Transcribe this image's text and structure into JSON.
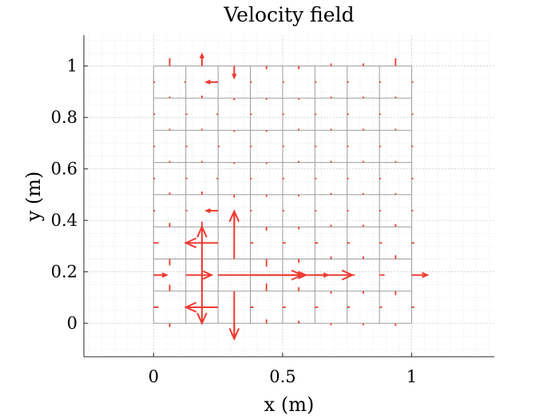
{
  "chart_data": {
    "type": "quiver",
    "title": "Velocity field",
    "xlabel": "x (m)",
    "ylabel": "y (m)",
    "xlim": [
      -0.27,
      1.32
    ],
    "ylim": [
      -0.13,
      1.12
    ],
    "xticks": [
      0,
      0.5,
      1
    ],
    "xtick_labels": [
      "0",
      "0.5",
      "1"
    ],
    "yticks": [
      0,
      0.2,
      0.4,
      0.6,
      0.8,
      1
    ],
    "ytick_labels": [
      "0",
      "0.2",
      "0.4",
      "0.6",
      "0.8",
      "1"
    ],
    "grid": true,
    "minor_grid": true,
    "arrow_color": "#ee3b31",
    "mesh_color": "#9b9b9b",
    "mesh": {
      "x_edges": 9,
      "y_edges": 9,
      "xmin": 0,
      "xmax": 1,
      "ymin": 0,
      "ymax": 1
    },
    "arrows": [
      {
        "x": 0.0625,
        "y": 1.0,
        "u": 0,
        "v": 0.03
      },
      {
        "x": 0.1875,
        "y": 1.0,
        "u": 0,
        "v": 0.045
      },
      {
        "x": 0.3125,
        "y": 1.0,
        "u": 0,
        "v": -0.045
      },
      {
        "x": 0.4375,
        "y": 1.0,
        "u": 0,
        "v": -0.012
      },
      {
        "x": 0.5625,
        "y": 1.0,
        "u": 0,
        "v": -0.012
      },
      {
        "x": 0.6875,
        "y": 1.0,
        "u": 0,
        "v": 0.01
      },
      {
        "x": 0.8125,
        "y": 1.0,
        "u": 0,
        "v": 0.01
      },
      {
        "x": 0.9375,
        "y": 1.0,
        "u": 0,
        "v": 0.03
      },
      {
        "x": 0.0,
        "y": 0.9375,
        "u": 0.006,
        "v": 0
      },
      {
        "x": 0.125,
        "y": 0.9375,
        "u": -0.006,
        "v": 0
      },
      {
        "x": 0.25,
        "y": 0.9375,
        "u": -0.045,
        "v": 0
      },
      {
        "x": 0.375,
        "y": 0.9375,
        "u": 0.006,
        "v": 0
      },
      {
        "x": 0.5,
        "y": 0.9375,
        "u": 0.006,
        "v": 0
      },
      {
        "x": 0.625,
        "y": 0.9375,
        "u": 0.006,
        "v": 0
      },
      {
        "x": 0.75,
        "y": 0.9375,
        "u": 0.006,
        "v": 0
      },
      {
        "x": 0.875,
        "y": 0.9375,
        "u": 0.006,
        "v": 0
      },
      {
        "x": 1.0,
        "y": 0.9375,
        "u": 0.006,
        "v": 0
      },
      {
        "x": 0.0625,
        "y": 0.875,
        "u": 0,
        "v": 0.006
      },
      {
        "x": 0.1875,
        "y": 0.875,
        "u": 0,
        "v": 0.01
      },
      {
        "x": 0.3125,
        "y": 0.875,
        "u": 0,
        "v": -0.008
      },
      {
        "x": 0.4375,
        "y": 0.875,
        "u": 0,
        "v": -0.006
      },
      {
        "x": 0.5625,
        "y": 0.875,
        "u": 0,
        "v": -0.006
      },
      {
        "x": 0.6875,
        "y": 0.875,
        "u": 0,
        "v": 0.006
      },
      {
        "x": 0.8125,
        "y": 0.875,
        "u": 0,
        "v": 0.006
      },
      {
        "x": 0.9375,
        "y": 0.875,
        "u": 0,
        "v": 0.006
      },
      {
        "x": 0.0,
        "y": 0.8125,
        "u": 0.006,
        "v": 0
      },
      {
        "x": 0.125,
        "y": 0.8125,
        "u": 0.006,
        "v": 0
      },
      {
        "x": 0.25,
        "y": 0.8125,
        "u": -0.006,
        "v": 0
      },
      {
        "x": 0.375,
        "y": 0.8125,
        "u": 0.006,
        "v": 0
      },
      {
        "x": 0.5,
        "y": 0.8125,
        "u": 0.006,
        "v": 0
      },
      {
        "x": 0.625,
        "y": 0.8125,
        "u": 0.006,
        "v": 0
      },
      {
        "x": 0.75,
        "y": 0.8125,
        "u": 0.006,
        "v": 0
      },
      {
        "x": 0.875,
        "y": 0.8125,
        "u": 0.006,
        "v": 0
      },
      {
        "x": 1.0,
        "y": 0.8125,
        "u": 0.006,
        "v": 0
      },
      {
        "x": 0.0625,
        "y": 0.75,
        "u": 0,
        "v": 0.006
      },
      {
        "x": 0.1875,
        "y": 0.75,
        "u": 0,
        "v": 0.006
      },
      {
        "x": 0.3125,
        "y": 0.75,
        "u": 0,
        "v": -0.006
      },
      {
        "x": 0.4375,
        "y": 0.75,
        "u": 0,
        "v": -0.006
      },
      {
        "x": 0.5625,
        "y": 0.75,
        "u": 0,
        "v": 0.006
      },
      {
        "x": 0.6875,
        "y": 0.75,
        "u": 0,
        "v": 0.006
      },
      {
        "x": 0.8125,
        "y": 0.75,
        "u": 0,
        "v": 0.006
      },
      {
        "x": 0.9375,
        "y": 0.75,
        "u": 0,
        "v": 0.006
      },
      {
        "x": 0.0,
        "y": 0.6875,
        "u": 0.006,
        "v": 0
      },
      {
        "x": 0.125,
        "y": 0.6875,
        "u": 0.006,
        "v": 0
      },
      {
        "x": 0.25,
        "y": 0.6875,
        "u": 0.006,
        "v": 0
      },
      {
        "x": 0.375,
        "y": 0.6875,
        "u": 0.006,
        "v": 0
      },
      {
        "x": 0.5,
        "y": 0.6875,
        "u": 0.006,
        "v": 0
      },
      {
        "x": 0.625,
        "y": 0.6875,
        "u": 0.006,
        "v": 0
      },
      {
        "x": 0.75,
        "y": 0.6875,
        "u": 0.006,
        "v": 0
      },
      {
        "x": 0.875,
        "y": 0.6875,
        "u": 0.006,
        "v": 0
      },
      {
        "x": 1.0,
        "y": 0.6875,
        "u": 0.006,
        "v": 0
      },
      {
        "x": 0.0625,
        "y": 0.625,
        "u": 0,
        "v": 0.006
      },
      {
        "x": 0.1875,
        "y": 0.625,
        "u": 0,
        "v": 0.006
      },
      {
        "x": 0.3125,
        "y": 0.625,
        "u": 0,
        "v": -0.006
      },
      {
        "x": 0.4375,
        "y": 0.625,
        "u": 0,
        "v": -0.006
      },
      {
        "x": 0.5625,
        "y": 0.625,
        "u": 0,
        "v": 0.006
      },
      {
        "x": 0.6875,
        "y": 0.625,
        "u": 0,
        "v": 0.006
      },
      {
        "x": 0.8125,
        "y": 0.625,
        "u": 0,
        "v": 0.006
      },
      {
        "x": 0.9375,
        "y": 0.625,
        "u": 0,
        "v": 0.006
      },
      {
        "x": 0.0,
        "y": 0.5625,
        "u": 0.006,
        "v": 0
      },
      {
        "x": 0.125,
        "y": 0.5625,
        "u": 0.006,
        "v": 0
      },
      {
        "x": 0.25,
        "y": 0.5625,
        "u": -0.006,
        "v": 0
      },
      {
        "x": 0.375,
        "y": 0.5625,
        "u": 0.006,
        "v": 0
      },
      {
        "x": 0.5,
        "y": 0.5625,
        "u": 0.006,
        "v": 0
      },
      {
        "x": 0.625,
        "y": 0.5625,
        "u": 0.006,
        "v": 0
      },
      {
        "x": 0.75,
        "y": 0.5625,
        "u": 0.006,
        "v": 0
      },
      {
        "x": 0.875,
        "y": 0.5625,
        "u": 0.006,
        "v": 0
      },
      {
        "x": 1.0,
        "y": 0.5625,
        "u": 0.006,
        "v": 0
      },
      {
        "x": 0.0625,
        "y": 0.5,
        "u": 0,
        "v": 0.008
      },
      {
        "x": 0.1875,
        "y": 0.5,
        "u": 0,
        "v": 0.012
      },
      {
        "x": 0.3125,
        "y": 0.5,
        "u": 0,
        "v": -0.012
      },
      {
        "x": 0.4375,
        "y": 0.5,
        "u": 0,
        "v": -0.008
      },
      {
        "x": 0.5625,
        "y": 0.5,
        "u": 0,
        "v": -0.006
      },
      {
        "x": 0.6875,
        "y": 0.5,
        "u": 0,
        "v": 0.006
      },
      {
        "x": 0.8125,
        "y": 0.5,
        "u": 0,
        "v": 0.006
      },
      {
        "x": 0.9375,
        "y": 0.5,
        "u": 0,
        "v": 0.006
      },
      {
        "x": 0.0,
        "y": 0.4375,
        "u": 0.006,
        "v": 0
      },
      {
        "x": 0.125,
        "y": 0.4375,
        "u": 0.006,
        "v": 0
      },
      {
        "x": 0.25,
        "y": 0.4375,
        "u": -0.045,
        "v": 0
      },
      {
        "x": 0.375,
        "y": 0.4375,
        "u": 0.006,
        "v": 0
      },
      {
        "x": 0.5,
        "y": 0.4375,
        "u": 0.006,
        "v": 0
      },
      {
        "x": 0.625,
        "y": 0.4375,
        "u": 0.006,
        "v": 0
      },
      {
        "x": 0.75,
        "y": 0.4375,
        "u": 0.006,
        "v": 0
      },
      {
        "x": 0.875,
        "y": 0.4375,
        "u": 0.006,
        "v": 0
      },
      {
        "x": 1.0,
        "y": 0.4375,
        "u": 0.006,
        "v": 0
      },
      {
        "x": 0.0625,
        "y": 0.375,
        "u": 0,
        "v": 0.015
      },
      {
        "x": 0.1875,
        "y": 0.375,
        "u": 0,
        "v": 0.02
      },
      {
        "x": 0.3125,
        "y": 0.375,
        "u": 0,
        "v": 0.06
      },
      {
        "x": 0.4375,
        "y": 0.375,
        "u": 0,
        "v": -0.015
      },
      {
        "x": 0.5625,
        "y": 0.375,
        "u": 0,
        "v": -0.01
      },
      {
        "x": 0.6875,
        "y": 0.375,
        "u": 0,
        "v": 0.008
      },
      {
        "x": 0.8125,
        "y": 0.375,
        "u": 0,
        "v": 0.008
      },
      {
        "x": 0.9375,
        "y": 0.375,
        "u": 0,
        "v": 0.01
      },
      {
        "x": 0.0,
        "y": 0.3125,
        "u": 0.02,
        "v": 0
      },
      {
        "x": 0.125,
        "y": 0.3125,
        "u": 0.012,
        "v": 0
      },
      {
        "x": 0.25,
        "y": 0.3125,
        "u": -0.125,
        "v": 0
      },
      {
        "x": 0.375,
        "y": 0.3125,
        "u": 0.012,
        "v": 0
      },
      {
        "x": 0.5,
        "y": 0.3125,
        "u": 0.012,
        "v": 0
      },
      {
        "x": 0.625,
        "y": 0.3125,
        "u": 0.012,
        "v": 0
      },
      {
        "x": 0.75,
        "y": 0.3125,
        "u": 0.01,
        "v": 0
      },
      {
        "x": 0.875,
        "y": 0.3125,
        "u": 0.01,
        "v": 0
      },
      {
        "x": 1.0,
        "y": 0.3125,
        "u": 0.01,
        "v": 0
      },
      {
        "x": 0.0625,
        "y": 0.25,
        "u": 0,
        "v": -0.025
      },
      {
        "x": 0.1875,
        "y": 0.25,
        "u": 0,
        "v": -0.25
      },
      {
        "x": 0.3125,
        "y": 0.25,
        "u": 0,
        "v": 0.185
      },
      {
        "x": 0.4375,
        "y": 0.25,
        "u": 0,
        "v": -0.03
      },
      {
        "x": 0.5625,
        "y": 0.25,
        "u": 0,
        "v": -0.015
      },
      {
        "x": 0.6875,
        "y": 0.25,
        "u": 0,
        "v": 0.01
      },
      {
        "x": 0.8125,
        "y": 0.25,
        "u": 0,
        "v": 0.01
      },
      {
        "x": 0.9375,
        "y": 0.25,
        "u": 0,
        "v": 0.015
      },
      {
        "x": 0.0,
        "y": 0.1875,
        "u": 0.05,
        "v": 0
      },
      {
        "x": 0.125,
        "y": 0.1875,
        "u": 0.1,
        "v": 0
      },
      {
        "x": 0.25,
        "y": 0.1875,
        "u": 0.52,
        "v": 0
      },
      {
        "x": 0.375,
        "y": 0.1875,
        "u": 0.2,
        "v": 0
      },
      {
        "x": 0.5,
        "y": 0.1875,
        "u": 0.09,
        "v": 0
      },
      {
        "x": 0.625,
        "y": 0.1875,
        "u": 0.05,
        "v": 0
      },
      {
        "x": 0.75,
        "y": 0.1875,
        "u": 0.03,
        "v": 0
      },
      {
        "x": 0.875,
        "y": 0.1875,
        "u": 0.02,
        "v": 0
      },
      {
        "x": 1.0,
        "y": 0.1875,
        "u": 0.06,
        "v": 0
      },
      {
        "x": 0.0625,
        "y": 0.125,
        "u": 0,
        "v": 0.025
      },
      {
        "x": 0.1875,
        "y": 0.125,
        "u": 0,
        "v": 0.25
      },
      {
        "x": 0.3125,
        "y": 0.125,
        "u": 0,
        "v": -0.185
      },
      {
        "x": 0.4375,
        "y": 0.125,
        "u": 0,
        "v": 0.03
      },
      {
        "x": 0.5625,
        "y": 0.125,
        "u": 0,
        "v": 0.015
      },
      {
        "x": 0.6875,
        "y": 0.125,
        "u": 0,
        "v": -0.01
      },
      {
        "x": 0.8125,
        "y": 0.125,
        "u": 0,
        "v": -0.01
      },
      {
        "x": 0.9375,
        "y": 0.125,
        "u": 0,
        "v": -0.015
      },
      {
        "x": 0.0,
        "y": 0.0625,
        "u": 0.02,
        "v": 0
      },
      {
        "x": 0.125,
        "y": 0.0625,
        "u": 0.012,
        "v": 0
      },
      {
        "x": 0.25,
        "y": 0.0625,
        "u": -0.125,
        "v": 0
      },
      {
        "x": 0.375,
        "y": 0.0625,
        "u": 0.012,
        "v": 0
      },
      {
        "x": 0.5,
        "y": 0.0625,
        "u": 0.012,
        "v": 0
      },
      {
        "x": 0.625,
        "y": 0.0625,
        "u": 0.012,
        "v": 0
      },
      {
        "x": 0.75,
        "y": 0.0625,
        "u": 0.01,
        "v": 0
      },
      {
        "x": 0.875,
        "y": 0.0625,
        "u": 0.01,
        "v": 0
      },
      {
        "x": 1.0,
        "y": 0.0625,
        "u": 0.01,
        "v": 0
      },
      {
        "x": 0.0625,
        "y": 0.0,
        "u": 0,
        "v": -0.015
      },
      {
        "x": 0.1875,
        "y": 0.0,
        "u": 0,
        "v": 0.02
      },
      {
        "x": 0.3125,
        "y": 0.0,
        "u": 0,
        "v": -0.06
      },
      {
        "x": 0.4375,
        "y": 0.0,
        "u": 0,
        "v": 0.015
      },
      {
        "x": 0.5625,
        "y": 0.0,
        "u": 0,
        "v": 0.01
      },
      {
        "x": 0.6875,
        "y": 0.0,
        "u": 0,
        "v": -0.008
      },
      {
        "x": 0.8125,
        "y": 0.0,
        "u": 0,
        "v": -0.008
      },
      {
        "x": 0.9375,
        "y": 0.0,
        "u": 0,
        "v": -0.01
      }
    ]
  }
}
